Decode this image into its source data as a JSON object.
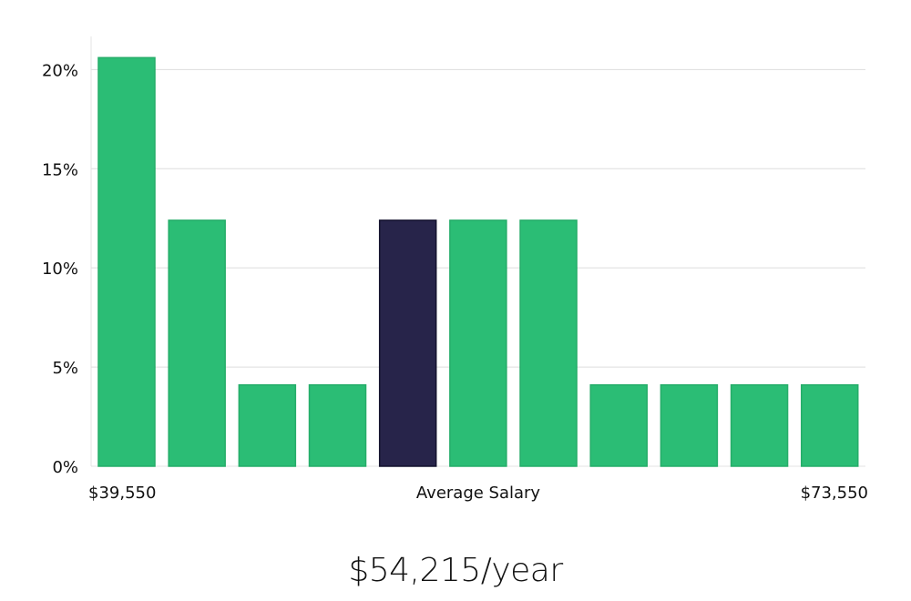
{
  "chart_data": {
    "type": "bar",
    "title": "",
    "xlabel": "Average Salary",
    "ylabel": "",
    "ylim": [
      0,
      21.67
    ],
    "yticks": [
      0,
      5,
      10,
      15,
      20
    ],
    "ytick_labels": [
      "0%",
      "5%",
      "10%",
      "15%",
      "20%"
    ],
    "x_min_label": "$39,550",
    "x_max_label": "$73,550",
    "values": [
      20.6,
      12.4,
      4.1,
      4.1,
      12.4,
      12.4,
      12.4,
      4.1,
      4.1,
      4.1,
      4.1
    ],
    "highlight_index": 4,
    "colors": {
      "bar": "#2bbd75",
      "bar_stroke": "#25ad69",
      "highlight": "#27244a",
      "highlight_stroke": "#14132e",
      "grid": "#dddddd",
      "axis": "#e3e3e3"
    }
  },
  "salary": {
    "value": "$54,215/year"
  }
}
